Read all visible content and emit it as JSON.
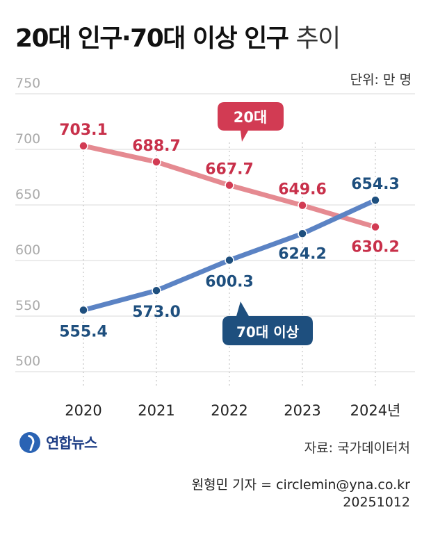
{
  "header": {
    "title": "20대 인구·70대 이상 인구",
    "title_suffix": "추이",
    "unit": "단위: 만 명"
  },
  "chart_data": {
    "type": "line",
    "categories": [
      "2020",
      "2021",
      "2022",
      "2023",
      "2024년"
    ],
    "ylim": [
      500,
      750
    ],
    "yticks": [
      750,
      700,
      650,
      600,
      550,
      500
    ],
    "grid": true,
    "series": [
      {
        "name": "20대",
        "color": "#e58a91",
        "label_color": "#c8304a",
        "point_color": "#d23b53",
        "values": [
          703.1,
          688.7,
          667.7,
          649.6,
          630.2
        ],
        "labels": [
          "703.1",
          "688.7",
          "667.7",
          "649.6",
          "630.2"
        ]
      },
      {
        "name": "70대 이상",
        "color": "#5b83c4",
        "label_color": "#1e4f7e",
        "point_color": "#1e4f7e",
        "values": [
          555.4,
          573.0,
          600.3,
          624.2,
          654.3
        ],
        "labels": [
          "555.4",
          "573.0",
          "600.3",
          "624.2",
          "654.3"
        ]
      }
    ]
  },
  "footer": {
    "logo_text": "연합뉴스",
    "source": "자료: 국가데이터처",
    "reporter": "원형민 기자 = circlemin@yna.co.kr",
    "date": "20251012"
  }
}
